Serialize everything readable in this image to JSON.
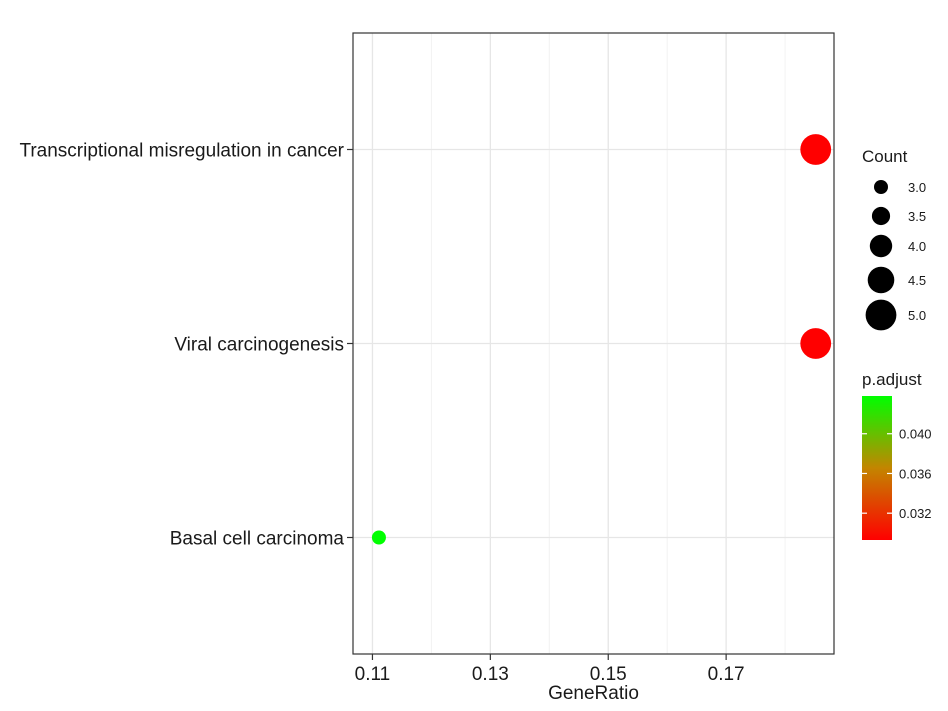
{
  "chart_data": {
    "type": "scatter",
    "title": "",
    "xlabel": "GeneRatio",
    "ylabel": "",
    "xlim": [
      0.1067,
      0.1883
    ],
    "x_ticks": [
      "0.11",
      "0.13",
      "0.15",
      "0.17"
    ],
    "x_tick_values": [
      0.11,
      0.13,
      0.15,
      0.17
    ],
    "categories": [
      "Transcriptional misregulation in cancer",
      "Viral carcinogenesis",
      "Basal cell carcinoma"
    ],
    "points": [
      {
        "term": "Transcriptional misregulation in cancer",
        "gene_ratio": 0.1852,
        "count": 5,
        "p_adjust": 0.0293,
        "color": "#ff0000"
      },
      {
        "term": "Viral carcinogenesis",
        "gene_ratio": 0.1852,
        "count": 5,
        "p_adjust": 0.0293,
        "color": "#ff0000"
      },
      {
        "term": "Basal cell carcinoma",
        "gene_ratio": 0.1111,
        "count": 3,
        "p_adjust": 0.0438,
        "color": "#00ff00"
      }
    ],
    "grid": true,
    "size_legend": {
      "title": "Count",
      "labels": [
        "3.0",
        "3.5",
        "4.0",
        "4.5",
        "5.0"
      ],
      "values": [
        3.0,
        3.5,
        4.0,
        4.5,
        5.0
      ]
    },
    "color_legend": {
      "title": "p.adjust",
      "labels": [
        "0.040",
        "0.036",
        "0.032"
      ],
      "values": [
        0.04,
        0.036,
        0.032
      ],
      "range": [
        0.0293,
        0.0438
      ],
      "low_color": "#ff0000",
      "high_color": "#00ff00"
    }
  }
}
